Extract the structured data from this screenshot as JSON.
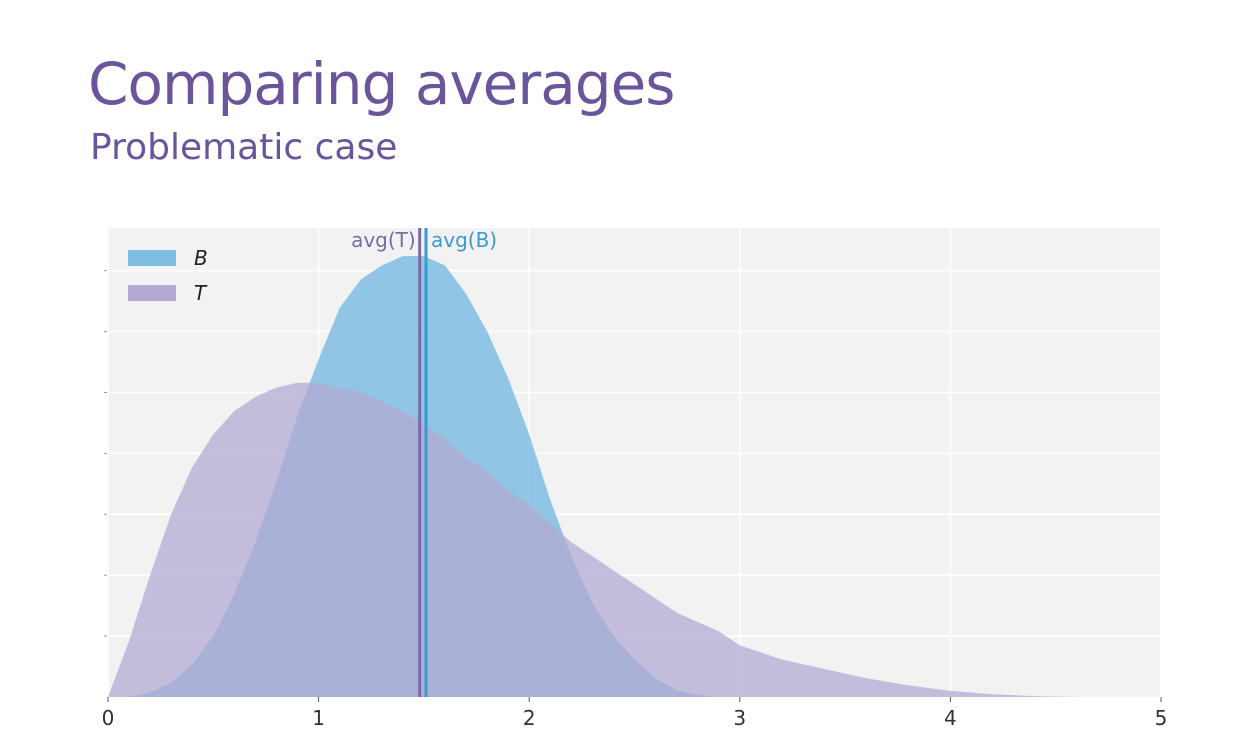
{
  "slide": {
    "title": "Comparing averages",
    "subtitle": "Problematic case"
  },
  "chart_data": {
    "type": "area",
    "title": "",
    "xlabel": "",
    "ylabel": "",
    "xlim": [
      0,
      5
    ],
    "ylim": [
      0,
      1.0
    ],
    "x_ticks": [
      "0",
      "1",
      "2",
      "3",
      "4",
      "5"
    ],
    "grid": true,
    "legend_position": "top-left",
    "x": [
      0,
      0.1,
      0.2,
      0.3,
      0.4,
      0.5,
      0.6,
      0.7,
      0.8,
      0.9,
      1.0,
      1.1,
      1.2,
      1.3,
      1.4,
      1.5,
      1.6,
      1.7,
      1.8,
      1.9,
      2.0,
      2.1,
      2.2,
      2.3,
      2.4,
      2.5,
      2.6,
      2.7,
      2.8,
      2.9,
      3.0,
      3.2,
      3.4,
      3.6,
      3.8,
      4.0,
      4.2,
      4.4,
      4.6,
      4.8,
      5.0
    ],
    "series": [
      {
        "name": "B",
        "color": "#7fbde3",
        "values": [
          0,
          0.0,
          0.01,
          0.03,
          0.07,
          0.13,
          0.22,
          0.33,
          0.46,
          0.6,
          0.72,
          0.83,
          0.89,
          0.92,
          0.94,
          0.94,
          0.92,
          0.86,
          0.78,
          0.68,
          0.56,
          0.42,
          0.3,
          0.2,
          0.13,
          0.08,
          0.04,
          0.015,
          0.005,
          0.0,
          0.0,
          0.0,
          0.0,
          0.0,
          0.0,
          0.0,
          0.0,
          0.0,
          0.0,
          0.0,
          0.0
        ]
      },
      {
        "name": "T",
        "color": "#b3a9d2",
        "values": [
          0,
          0.12,
          0.26,
          0.39,
          0.49,
          0.56,
          0.61,
          0.64,
          0.66,
          0.67,
          0.67,
          0.66,
          0.65,
          0.63,
          0.61,
          0.58,
          0.55,
          0.51,
          0.48,
          0.44,
          0.41,
          0.37,
          0.33,
          0.3,
          0.27,
          0.24,
          0.21,
          0.18,
          0.16,
          0.14,
          0.11,
          0.08,
          0.06,
          0.04,
          0.025,
          0.013,
          0.006,
          0.002,
          0.0,
          0.0,
          0.0
        ]
      }
    ],
    "vlines": [
      {
        "label": "avg(T)",
        "x": 1.48,
        "color": "#7b6aa6"
      },
      {
        "label": "avg(B)",
        "x": 1.51,
        "color": "#3a9ad4"
      }
    ]
  }
}
